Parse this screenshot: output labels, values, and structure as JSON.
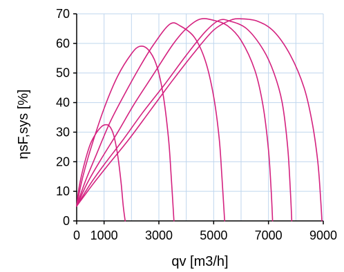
{
  "chart_data": {
    "type": "line",
    "title": "",
    "xlabel": "qv [m3/h]",
    "ylabel": "ηsF,sys [%]",
    "xlim": [
      0,
      9000
    ],
    "ylim": [
      0,
      70
    ],
    "xticks": [
      0,
      1000,
      3000,
      5000,
      7000,
      9000
    ],
    "xtick_labels": [
      "0",
      "1000",
      "3000",
      "5000",
      "7000",
      "9000"
    ],
    "yticks": [
      0,
      10,
      20,
      30,
      40,
      50,
      60,
      70
    ],
    "ytick_labels": [
      "0",
      "10",
      "20",
      "30",
      "40",
      "50",
      "60",
      "70"
    ],
    "x_grid": [
      0,
      1000,
      2000,
      3000,
      4000,
      5000,
      6000,
      7000,
      8000,
      9000
    ],
    "y_grid": [
      0,
      10,
      20,
      30,
      40,
      50,
      60,
      70
    ],
    "grid": true,
    "legend": "none",
    "colors": {
      "series": "#d4217f",
      "grid": "#bfd6ee",
      "axis": "#000000"
    },
    "series": [
      {
        "values": [
          [
            0,
            5
          ],
          [
            100,
            12
          ],
          [
            300,
            20
          ],
          [
            500,
            26
          ],
          [
            700,
            29.5
          ],
          [
            900,
            31.8
          ],
          [
            1050,
            32.5
          ],
          [
            1200,
            32
          ],
          [
            1350,
            29
          ],
          [
            1500,
            22
          ],
          [
            1620,
            13
          ],
          [
            1700,
            5
          ],
          [
            1770,
            0
          ]
        ]
      },
      {
        "values": [
          [
            0,
            5
          ],
          [
            200,
            14
          ],
          [
            500,
            24
          ],
          [
            1000,
            38
          ],
          [
            1500,
            49
          ],
          [
            2000,
            56.5
          ],
          [
            2300,
            59
          ],
          [
            2600,
            58
          ],
          [
            2900,
            53
          ],
          [
            3150,
            43
          ],
          [
            3350,
            28
          ],
          [
            3450,
            15
          ],
          [
            3550,
            0
          ]
        ]
      },
      {
        "values": [
          [
            0,
            5
          ],
          [
            300,
            13
          ],
          [
            700,
            22
          ],
          [
            1200,
            33
          ],
          [
            1700,
            42
          ],
          [
            2300,
            52
          ],
          [
            2800,
            59.5
          ],
          [
            3400,
            66.5
          ],
          [
            3800,
            65.8
          ],
          [
            4300,
            62
          ],
          [
            4700,
            54
          ],
          [
            5000,
            42
          ],
          [
            5200,
            28
          ],
          [
            5300,
            15
          ],
          [
            5400,
            0
          ]
        ]
      },
      {
        "values": [
          [
            0,
            5
          ],
          [
            400,
            13
          ],
          [
            900,
            21
          ],
          [
            1500,
            30
          ],
          [
            2100,
            39.5
          ],
          [
            2800,
            49.5
          ],
          [
            3500,
            59.5
          ],
          [
            4000,
            65
          ],
          [
            4500,
            68.2
          ],
          [
            5000,
            67.8
          ],
          [
            5500,
            66
          ],
          [
            6000,
            61
          ],
          [
            6500,
            51
          ],
          [
            6800,
            39
          ],
          [
            7000,
            24
          ],
          [
            7100,
            10
          ],
          [
            7150,
            0
          ]
        ]
      },
      {
        "values": [
          [
            0,
            5
          ],
          [
            500,
            12.5
          ],
          [
            1000,
            19
          ],
          [
            1700,
            27.5
          ],
          [
            2400,
            36.5
          ],
          [
            3200,
            46
          ],
          [
            4000,
            56
          ],
          [
            4700,
            64
          ],
          [
            5200,
            67.8
          ],
          [
            5600,
            67.5
          ],
          [
            6200,
            65
          ],
          [
            6800,
            58
          ],
          [
            7200,
            50
          ],
          [
            7500,
            40
          ],
          [
            7700,
            25
          ],
          [
            7800,
            10
          ],
          [
            7850,
            0
          ]
        ]
      },
      {
        "values": [
          [
            0,
            5
          ],
          [
            600,
            12.5
          ],
          [
            1200,
            19.5
          ],
          [
            1900,
            27.5
          ],
          [
            2700,
            37.5
          ],
          [
            3500,
            47.5
          ],
          [
            4300,
            57
          ],
          [
            5000,
            64.5
          ],
          [
            5600,
            67.8
          ],
          [
            6000,
            68.3
          ],
          [
            6600,
            67.5
          ],
          [
            7200,
            64
          ],
          [
            7800,
            56
          ],
          [
            8300,
            45
          ],
          [
            8600,
            33
          ],
          [
            8800,
            20
          ],
          [
            8900,
            8
          ],
          [
            8950,
            0
          ]
        ]
      }
    ]
  }
}
